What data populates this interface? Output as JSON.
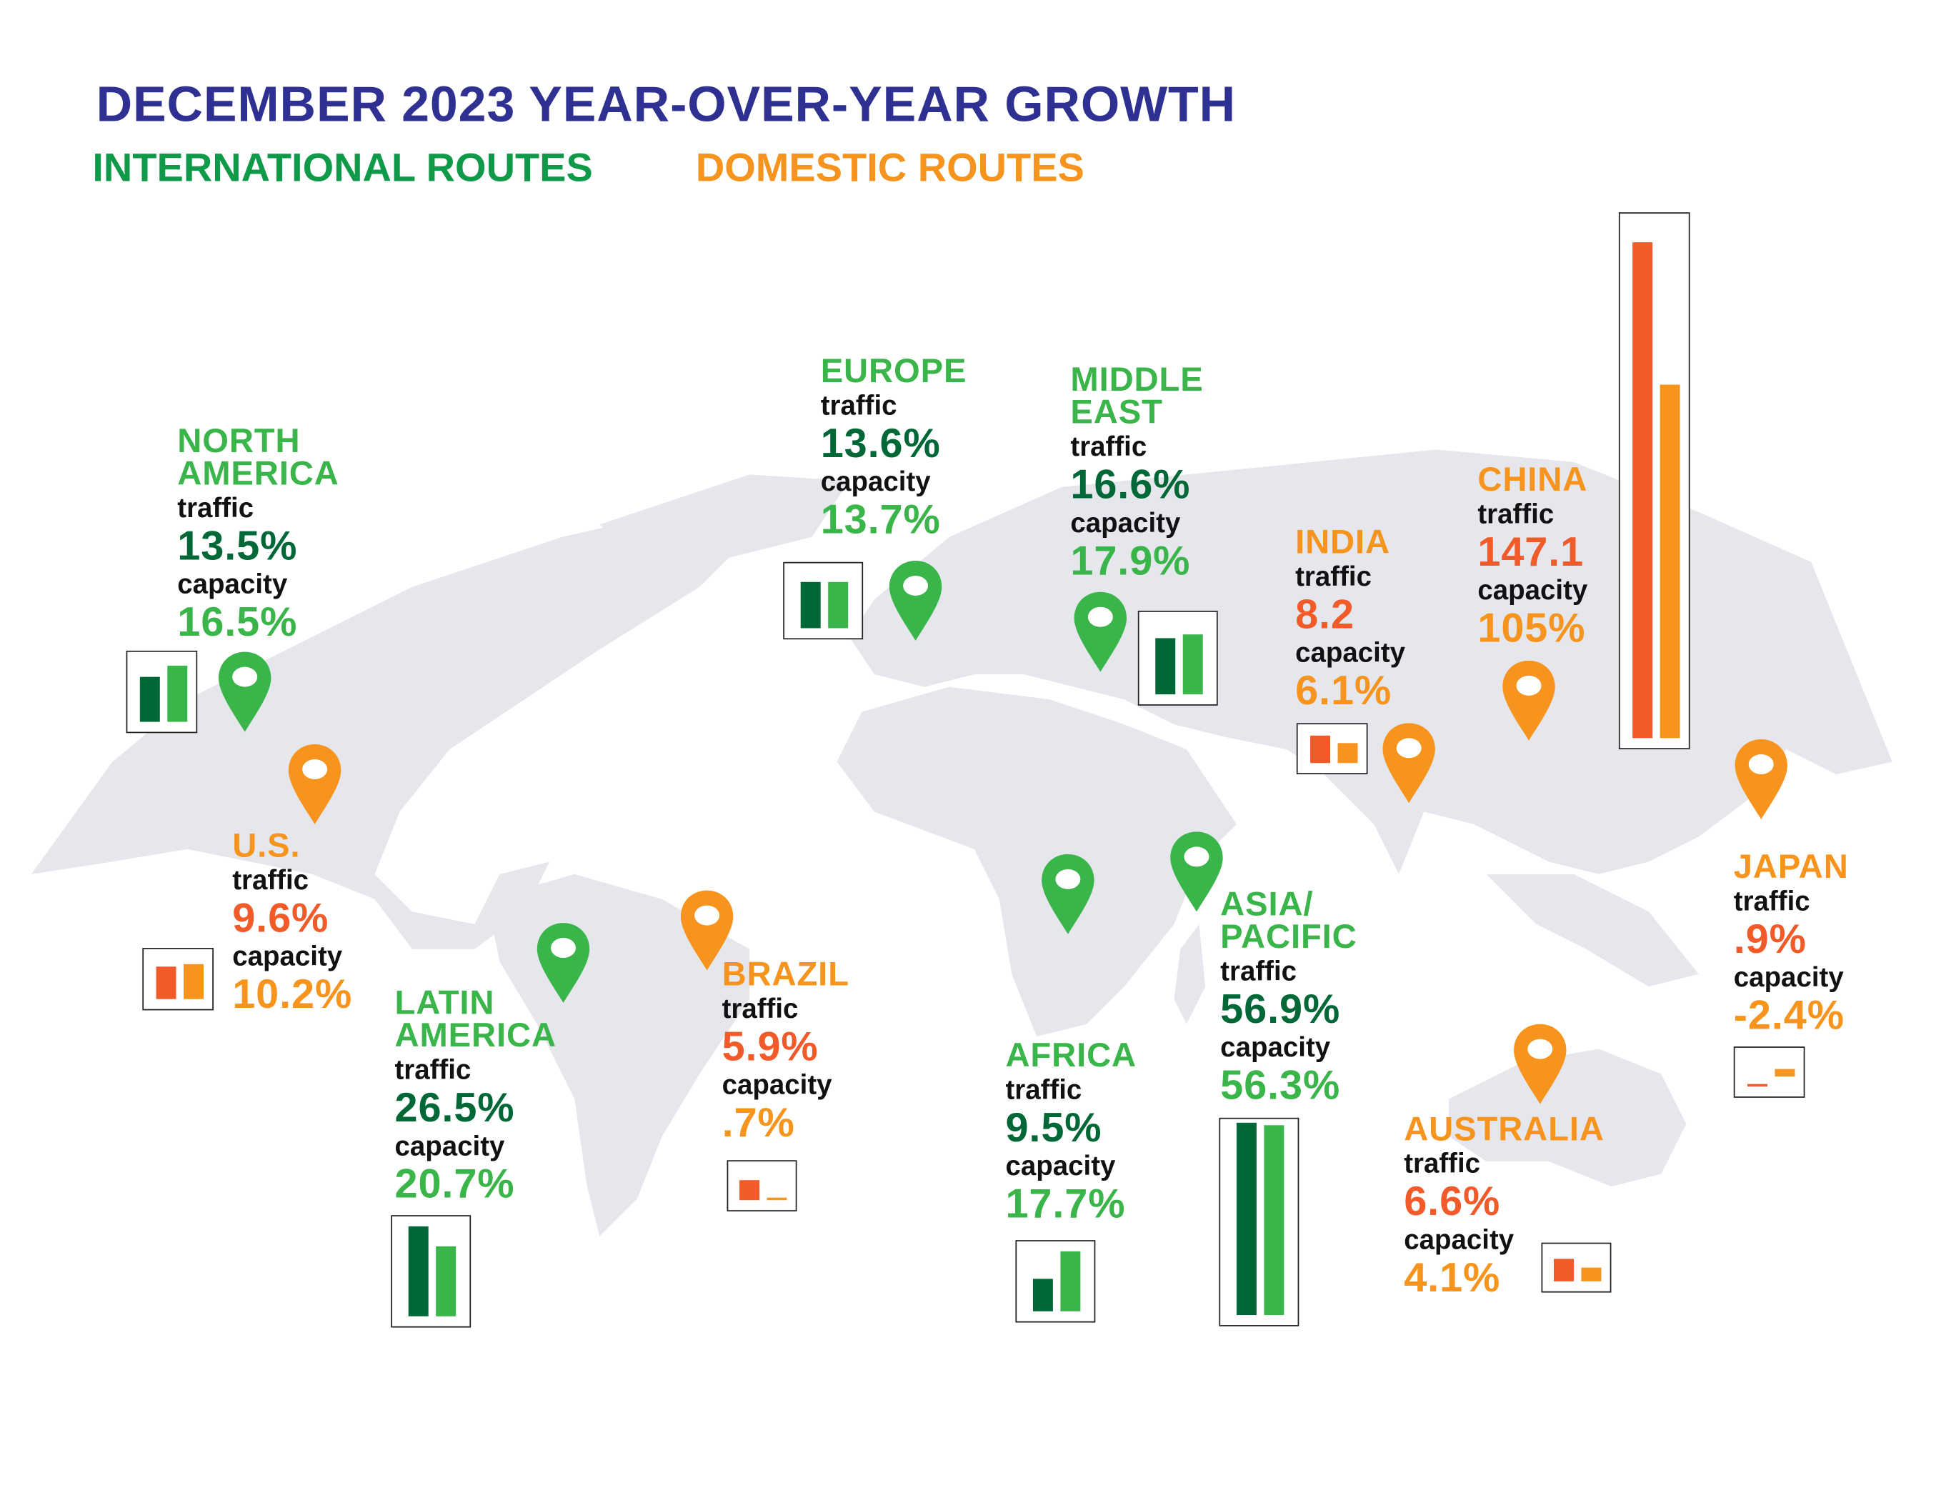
{
  "header": {
    "title": "DECEMBER 2023 YEAR-OVER-YEAR GROWTH",
    "legend_international": "INTERNATIONAL ROUTES",
    "legend_domestic": "DOMESTIC ROUTES"
  },
  "colors": {
    "title": "#2e3192",
    "international_legend": "#0f9a4a",
    "international_name": "#3ab54a",
    "international_traffic": "#006837",
    "international_capacity": "#3ab54a",
    "domestic_name": "#f7941d",
    "domestic_traffic": "#f15a29",
    "domestic_capacity": "#f7941d",
    "map": "#e6e7ec"
  },
  "chart_data": {
    "type": "bar",
    "title": "DECEMBER 2023 YEAR-OVER-YEAR GROWTH",
    "series_labels": [
      "traffic",
      "capacity"
    ],
    "unit": "%",
    "regions": [
      {
        "name": "NORTH\nAMERICA",
        "group": "international",
        "traffic_label": "traffic",
        "traffic": 13.5,
        "traffic_text": "13.5%",
        "capacity_label": "capacity",
        "capacity": 16.5,
        "capacity_text": "16.5%"
      },
      {
        "name": "EUROPE",
        "group": "international",
        "traffic_label": "traffic",
        "traffic": 13.6,
        "traffic_text": "13.6%",
        "capacity_label": "capacity",
        "capacity": 13.7,
        "capacity_text": "13.7%"
      },
      {
        "name": "MIDDLE\nEAST",
        "group": "international",
        "traffic_label": "traffic",
        "traffic": 16.6,
        "traffic_text": "16.6%",
        "capacity_label": "capacity",
        "capacity": 17.9,
        "capacity_text": "17.9%"
      },
      {
        "name": "INDIA",
        "group": "domestic",
        "traffic_label": "traffic",
        "traffic": 8.2,
        "traffic_text": "8.2",
        "capacity_label": "capacity",
        "capacity": 6.1,
        "capacity_text": "6.1%"
      },
      {
        "name": "CHINA",
        "group": "domestic",
        "traffic_label": "traffic",
        "traffic": 147.1,
        "traffic_text": "147.1",
        "capacity_label": "capacity",
        "capacity": 105,
        "capacity_text": "105%"
      },
      {
        "name": "U.S.",
        "group": "domestic",
        "traffic_label": "traffic",
        "traffic": 9.6,
        "traffic_text": "9.6%",
        "capacity_label": "capacity",
        "capacity": 10.2,
        "capacity_text": "10.2%"
      },
      {
        "name": "LATIN\nAMERICA",
        "group": "international",
        "traffic_label": "traffic",
        "traffic": 26.5,
        "traffic_text": "26.5%",
        "capacity_label": "capacity",
        "capacity": 20.7,
        "capacity_text": "20.7%"
      },
      {
        "name": "BRAZIL",
        "group": "domestic",
        "traffic_label": "traffic",
        "traffic": 5.9,
        "traffic_text": "5.9%",
        "capacity_label": "capacity",
        "capacity": 0.7,
        "capacity_text": ".7%"
      },
      {
        "name": "AFRICA",
        "group": "international",
        "traffic_label": "traffic",
        "traffic": 9.5,
        "traffic_text": "9.5%",
        "capacity_label": "capacity",
        "capacity": 17.7,
        "capacity_text": "17.7%"
      },
      {
        "name": "ASIA/\nPACIFIC",
        "group": "international",
        "traffic_label": "traffic",
        "traffic": 56.9,
        "traffic_text": "56.9%",
        "capacity_label": "capacity",
        "capacity": 56.3,
        "capacity_text": "56.3%"
      },
      {
        "name": "JAPAN",
        "group": "domestic",
        "traffic_label": "traffic",
        "traffic": 0.9,
        "traffic_text": ".9%",
        "capacity_label": "capacity",
        "capacity": -2.4,
        "capacity_text": "-2.4%"
      },
      {
        "name": "AUSTRALIA",
        "group": "domestic",
        "traffic_label": "traffic",
        "traffic": 6.6,
        "traffic_text": "6.6%",
        "capacity_label": "capacity",
        "capacity": 4.1,
        "capacity_text": "4.1%"
      }
    ]
  }
}
